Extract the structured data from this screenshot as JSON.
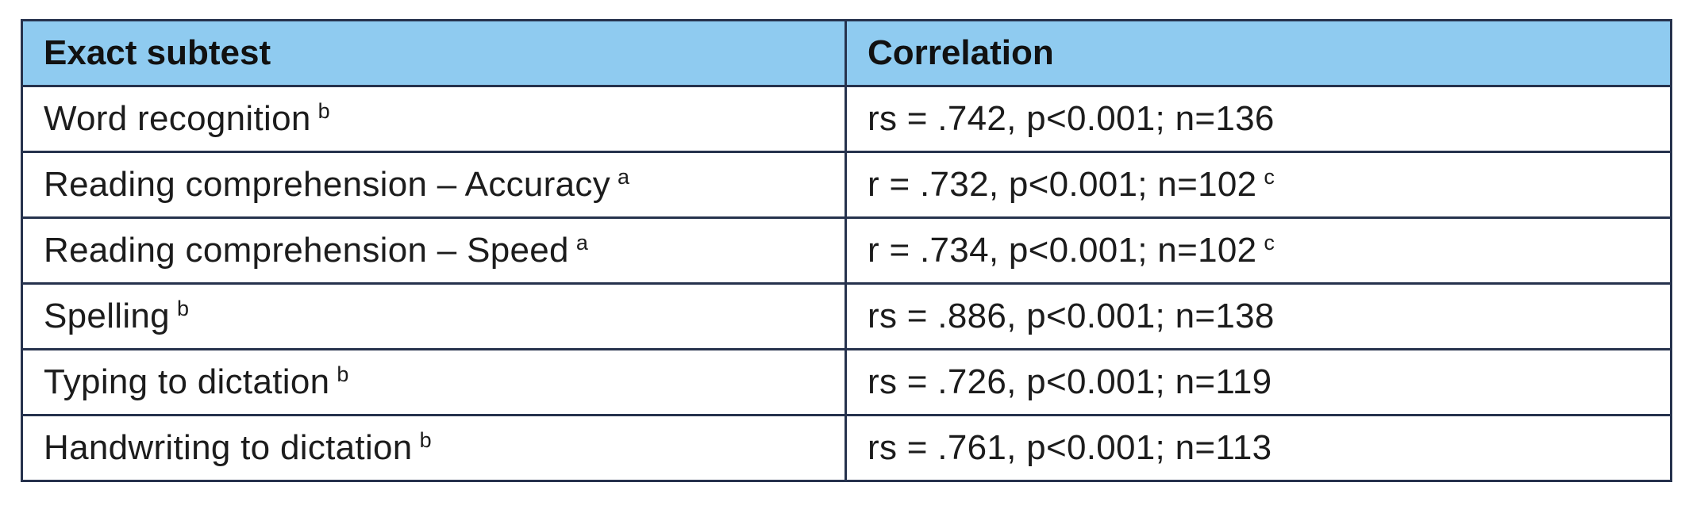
{
  "table": {
    "headers": [
      "Exact subtest",
      "Correlation"
    ],
    "rows": [
      {
        "subtest": "Word recognition",
        "subtest_note": "b",
        "correlation": "rs = .742, p<0.001; n=136",
        "correlation_note": ""
      },
      {
        "subtest": "Reading comprehension – Accuracy",
        "subtest_note": "a",
        "correlation": "r = .732, p<0.001; n=102",
        "correlation_note": "c"
      },
      {
        "subtest": "Reading comprehension – Speed",
        "subtest_note": "a",
        "correlation": "r = .734, p<0.001; n=102",
        "correlation_note": "c"
      },
      {
        "subtest": "Spelling",
        "subtest_note": "b",
        "correlation": "rs = .886, p<0.001; n=138",
        "correlation_note": ""
      },
      {
        "subtest": "Typing to dictation",
        "subtest_note": "b",
        "correlation": "rs = .726, p<0.001; n=119",
        "correlation_note": ""
      },
      {
        "subtest": "Handwriting to dictation",
        "subtest_note": "b",
        "correlation": "rs = .761, p<0.001; n=113",
        "correlation_note": ""
      }
    ]
  },
  "colors": {
    "header_bg": "#8fcbf0",
    "border": "#26324d"
  }
}
